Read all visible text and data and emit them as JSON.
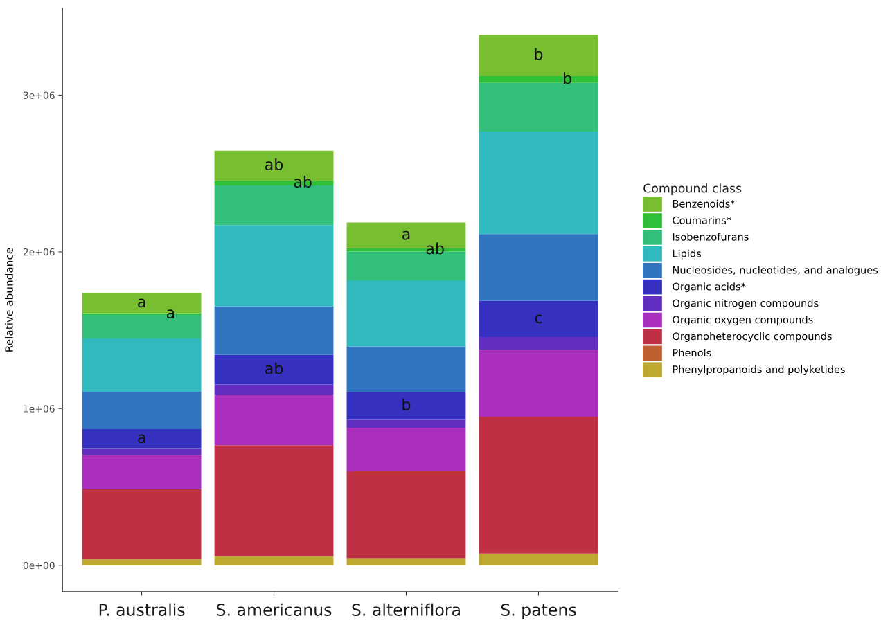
{
  "chart_data": {
    "type": "bar",
    "stacked": true,
    "ylabel": "Relative abundance",
    "legend_title": "Compound class",
    "legend": "right",
    "grid": false,
    "categories": [
      "P. australis",
      "S. americanus",
      "S. alterniflora",
      "S. patens"
    ],
    "ylim": [
      -169000,
      3554000
    ],
    "yticks": [
      {
        "value": 0,
        "label": "0e+00"
      },
      {
        "value": 1000000,
        "label": "1e+06"
      },
      {
        "value": 2000000,
        "label": "2e+06"
      },
      {
        "value": 3000000,
        "label": "3e+06"
      }
    ],
    "series": [
      {
        "name": "Phenylpropanoids and polyketides",
        "color": "#bfa830",
        "values": [
          38000,
          57000,
          45000,
          75000
        ]
      },
      {
        "name": "Phenols",
        "color": "#bf6030",
        "values": [
          0,
          0,
          0,
          0
        ]
      },
      {
        "name": "Organoheterocyclic compounds",
        "color": "#bf3045",
        "values": [
          448000,
          709000,
          555000,
          873000
        ]
      },
      {
        "name": "Organic oxygen compounds",
        "color": "#aa2fbf",
        "values": [
          217000,
          322000,
          278000,
          428000
        ]
      },
      {
        "name": "Organic nitrogen compounds",
        "color": "#622ebf",
        "values": [
          44000,
          66000,
          51000,
          80000
        ]
      },
      {
        "name": "Organic acids*",
        "color": "#3530bf",
        "values": [
          122000,
          188000,
          177000,
          232000
        ]
      },
      {
        "name": "Nucleosides, nucleotides, and analogues",
        "color": "#3174c0",
        "values": [
          238000,
          311000,
          291000,
          425000
        ]
      },
      {
        "name": "Lipids",
        "color": "#31babe",
        "values": [
          340000,
          518000,
          421000,
          655000
        ]
      },
      {
        "name": "Isobenzofurans",
        "color": "#33bf7b",
        "values": [
          151000,
          252000,
          184000,
          310000
        ]
      },
      {
        "name": "Coumarins*",
        "color": "#2fbf38",
        "values": [
          11000,
          30000,
          22000,
          43000
        ]
      },
      {
        "name": "Benzenoids*",
        "color": "#77bf30",
        "values": [
          129000,
          192000,
          163000,
          264000
        ]
      }
    ],
    "annotations": [
      {
        "text": "a",
        "x": "P. australis",
        "y": 1738000
      },
      {
        "text": "a",
        "x": "P. australis",
        "y": 1609000
      },
      {
        "text": "a",
        "x": "P. australis",
        "y": 869000
      },
      {
        "text": "ab",
        "x": "S. americanus",
        "y": 2645000
      },
      {
        "text": "ab",
        "x": "S. americanus",
        "y": 2453000
      },
      {
        "text": "ab",
        "x": "S. americanus",
        "y": 1342000
      },
      {
        "text": "a",
        "x": "S. alterniflora",
        "y": 2187000
      },
      {
        "text": "ab",
        "x": "S. alterniflora",
        "y": 2024000
      },
      {
        "text": "b",
        "x": "S. alterniflora",
        "y": 1106000
      },
      {
        "text": "b",
        "x": "S. patens",
        "y": 3385000
      },
      {
        "text": "b",
        "x": "S. patens",
        "y": 3121000
      },
      {
        "text": "c",
        "x": "S. patens",
        "y": 1688000
      }
    ]
  }
}
